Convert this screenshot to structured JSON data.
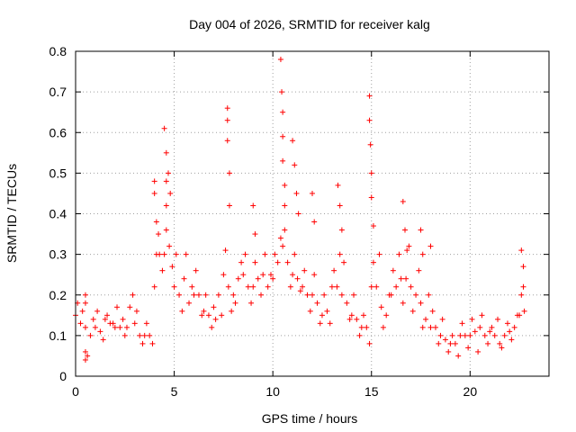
{
  "chart_data": {
    "type": "scatter",
    "title": "Day 004 of 2026, SRMTID for receiver kalg",
    "xlabel": "GPS time / hours",
    "ylabel": "SRMTID / TECUs",
    "xlim": [
      0,
      24
    ],
    "ylim": [
      0,
      0.8
    ],
    "xticks": [
      0,
      5,
      10,
      15,
      20
    ],
    "yticks": [
      0,
      0.1,
      0.2,
      0.3,
      0.4,
      0.5,
      0.6,
      0.7,
      0.8
    ],
    "xtick_labels": [
      "0",
      "5",
      "10",
      "15",
      "20"
    ],
    "ytick_labels": [
      "0",
      "0.1",
      "0.2",
      "0.3",
      "0.4",
      "0.5",
      "0.6",
      "0.7",
      "0.8"
    ],
    "grid": true,
    "marker": "+",
    "color": "#ff0000",
    "series": [
      {
        "name": "SRMTID",
        "x": [
          0.0,
          0.25,
          0.5,
          0.75,
          1.0,
          1.25,
          1.5,
          1.75,
          2.0,
          2.25,
          2.5,
          2.75,
          3.0,
          3.25,
          3.5,
          3.75,
          4.0,
          4.25,
          4.5,
          4.75,
          5.0,
          5.25,
          5.5,
          5.75,
          6.0,
          6.25,
          6.5,
          6.75,
          7.0,
          7.25,
          7.5,
          7.75,
          8.0,
          8.25,
          8.5,
          8.75,
          9.0,
          9.25,
          9.5,
          9.75,
          10.0,
          10.25,
          10.5,
          10.75,
          11.0,
          11.25,
          11.5,
          11.75,
          12.0,
          12.25,
          12.5,
          12.75,
          13.0,
          13.25,
          13.5,
          13.75,
          14.0,
          14.25,
          14.5,
          14.75,
          15.0,
          15.25,
          15.5,
          15.75,
          16.0,
          16.25,
          16.5,
          16.75,
          17.0,
          17.25,
          17.5,
          17.75,
          18.0,
          18.25,
          18.5,
          18.75,
          19.0,
          19.25,
          19.5,
          19.75,
          20.0,
          20.25,
          20.5,
          20.75,
          21.0,
          21.25,
          21.5,
          21.75,
          22.0,
          22.25,
          22.5,
          22.75,
          0.1,
          0.35,
          0.6,
          0.9,
          1.1,
          1.4,
          1.6,
          1.9,
          2.1,
          2.4,
          2.6,
          2.9,
          3.1,
          3.4,
          3.6,
          3.9,
          4.1,
          4.4,
          4.6,
          4.9,
          5.1,
          5.4,
          5.6,
          5.9,
          6.1,
          6.4,
          6.6,
          6.9,
          7.1,
          7.4,
          7.6,
          7.9,
          8.1,
          8.4,
          8.6,
          8.9,
          9.1,
          9.4,
          9.6,
          9.9,
          10.1,
          10.4,
          10.6,
          10.9,
          11.1,
          11.4,
          11.6,
          11.9,
          12.1,
          12.4,
          12.6,
          12.9,
          13.1,
          13.4,
          13.6,
          13.9,
          14.1,
          14.4,
          14.6,
          14.9,
          15.1,
          15.4,
          15.6,
          15.9,
          16.1,
          16.4,
          16.6,
          16.9,
          17.1,
          17.4,
          17.6,
          17.9,
          18.1,
          18.4,
          18.6,
          18.9,
          19.1,
          19.4,
          19.6,
          19.9,
          20.1,
          20.4,
          20.6,
          20.9,
          21.1,
          21.4,
          21.6,
          21.9,
          22.1,
          22.4,
          22.6,
          0.5,
          0.5,
          0.5,
          0.5,
          4.0,
          4.0,
          4.1,
          4.2,
          4.5,
          4.6,
          4.6,
          4.6,
          4.7,
          4.8,
          7.7,
          7.7,
          7.7,
          7.8,
          7.8,
          10.4,
          10.45,
          10.5,
          10.5,
          10.5,
          10.6,
          10.6,
          11.0,
          11.1,
          11.2,
          11.3,
          13.3,
          13.4,
          13.5,
          14.9,
          14.9,
          14.95,
          15.0,
          15.0,
          15.1,
          16.6,
          16.7,
          16.8,
          22.6,
          22.7,
          22.7,
          9.0,
          9.1,
          12.0,
          12.1,
          17.5,
          17.6,
          18.0
        ],
        "y": [
          0.15,
          0.13,
          0.12,
          0.1,
          0.12,
          0.11,
          0.14,
          0.13,
          0.12,
          0.12,
          0.1,
          0.17,
          0.13,
          0.1,
          0.1,
          0.1,
          0.22,
          0.3,
          0.3,
          0.32,
          0.22,
          0.2,
          0.24,
          0.18,
          0.2,
          0.2,
          0.16,
          0.15,
          0.17,
          0.2,
          0.25,
          0.22,
          0.2,
          0.24,
          0.25,
          0.22,
          0.22,
          0.24,
          0.25,
          0.22,
          0.24,
          0.28,
          0.32,
          0.28,
          0.25,
          0.24,
          0.22,
          0.2,
          0.2,
          0.18,
          0.15,
          0.16,
          0.22,
          0.22,
          0.2,
          0.18,
          0.15,
          0.14,
          0.12,
          0.12,
          0.22,
          0.22,
          0.17,
          0.15,
          0.2,
          0.22,
          0.24,
          0.24,
          0.22,
          0.2,
          0.18,
          0.14,
          0.12,
          0.12,
          0.1,
          0.09,
          0.08,
          0.08,
          0.1,
          0.1,
          0.1,
          0.11,
          0.12,
          0.1,
          0.11,
          0.1,
          0.08,
          0.1,
          0.11,
          0.12,
          0.15,
          0.16,
          0.18,
          0.16,
          0.05,
          0.14,
          0.16,
          0.09,
          0.15,
          0.13,
          0.17,
          0.14,
          0.12,
          0.2,
          0.16,
          0.08,
          0.13,
          0.08,
          0.3,
          0.26,
          0.36,
          0.27,
          0.3,
          0.16,
          0.3,
          0.22,
          0.26,
          0.15,
          0.2,
          0.12,
          0.14,
          0.15,
          0.31,
          0.16,
          0.18,
          0.28,
          0.3,
          0.18,
          0.28,
          0.2,
          0.3,
          0.25,
          0.3,
          0.34,
          0.36,
          0.22,
          0.3,
          0.21,
          0.26,
          0.16,
          0.25,
          0.13,
          0.2,
          0.13,
          0.26,
          0.3,
          0.28,
          0.14,
          0.2,
          0.1,
          0.15,
          0.08,
          0.28,
          0.3,
          0.12,
          0.2,
          0.26,
          0.3,
          0.18,
          0.32,
          0.16,
          0.26,
          0.12,
          0.2,
          0.16,
          0.08,
          0.14,
          0.06,
          0.1,
          0.05,
          0.13,
          0.07,
          0.14,
          0.06,
          0.15,
          0.08,
          0.12,
          0.14,
          0.07,
          0.13,
          0.09,
          0.15,
          0.2,
          0.2,
          0.04,
          0.18,
          0.06,
          0.48,
          0.45,
          0.38,
          0.35,
          0.61,
          0.55,
          0.48,
          0.42,
          0.5,
          0.45,
          0.66,
          0.63,
          0.58,
          0.5,
          0.42,
          0.78,
          0.7,
          0.65,
          0.59,
          0.53,
          0.47,
          0.42,
          0.58,
          0.52,
          0.45,
          0.4,
          0.47,
          0.42,
          0.36,
          0.69,
          0.63,
          0.57,
          0.5,
          0.44,
          0.37,
          0.43,
          0.36,
          0.31,
          0.31,
          0.27,
          0.22,
          0.42,
          0.35,
          0.45,
          0.38,
          0.36,
          0.3,
          0.32
        ]
      }
    ]
  }
}
